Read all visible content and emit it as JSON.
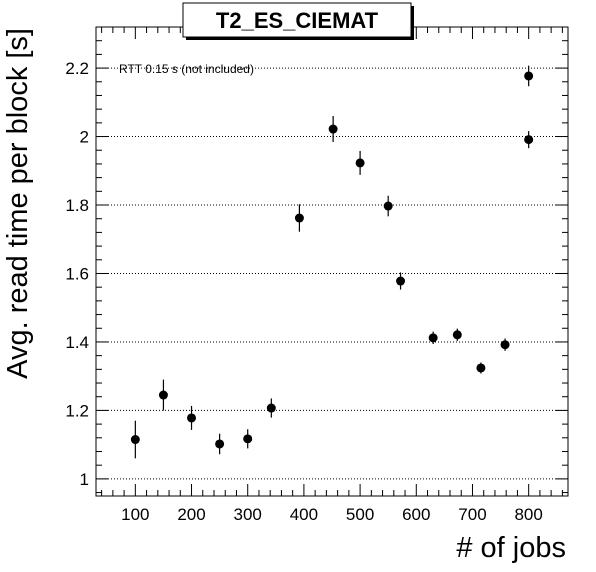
{
  "chart_data": {
    "type": "scatter",
    "title": "T2_ES_CIEMAT",
    "xlabel": "# of jobs",
    "ylabel": "Avg. read time per block [s]",
    "annotation": "RTT 0.15 s (not included)",
    "xlim": [
      30,
      870
    ],
    "ylim": [
      0.95,
      2.32
    ],
    "x_ticks": [
      100,
      200,
      300,
      400,
      500,
      600,
      700,
      800
    ],
    "y_ticks": [
      1,
      1.2,
      1.4,
      1.6,
      1.8,
      2,
      2.2
    ],
    "x_tick_labels": [
      "100",
      "200",
      "300",
      "400",
      "500",
      "600",
      "700",
      "800"
    ],
    "y_tick_labels": [
      "1",
      "1.2",
      "1.4",
      "1.6",
      "1.8",
      "2",
      "2.2"
    ],
    "grid": "horizontal dotted",
    "marker_color": "#000000",
    "points": [
      {
        "x": 100,
        "y": 1.115,
        "err": 0.055
      },
      {
        "x": 150,
        "y": 1.245,
        "err": 0.045
      },
      {
        "x": 200,
        "y": 1.178,
        "err": 0.035
      },
      {
        "x": 250,
        "y": 1.102,
        "err": 0.03
      },
      {
        "x": 300,
        "y": 1.117,
        "err": 0.028
      },
      {
        "x": 342,
        "y": 1.207,
        "err": 0.028
      },
      {
        "x": 392,
        "y": 1.762,
        "err": 0.04
      },
      {
        "x": 452,
        "y": 2.022,
        "err": 0.038
      },
      {
        "x": 500,
        "y": 1.923,
        "err": 0.035
      },
      {
        "x": 550,
        "y": 1.797,
        "err": 0.03
      },
      {
        "x": 572,
        "y": 1.578,
        "err": 0.025
      },
      {
        "x": 630,
        "y": 1.412,
        "err": 0.018
      },
      {
        "x": 673,
        "y": 1.421,
        "err": 0.018
      },
      {
        "x": 715,
        "y": 1.324,
        "err": 0.016
      },
      {
        "x": 758,
        "y": 1.392,
        "err": 0.018
      },
      {
        "x": 800,
        "y": 2.177,
        "err": 0.03
      },
      {
        "x": 800,
        "y": 1.991,
        "err": 0.025
      }
    ]
  }
}
